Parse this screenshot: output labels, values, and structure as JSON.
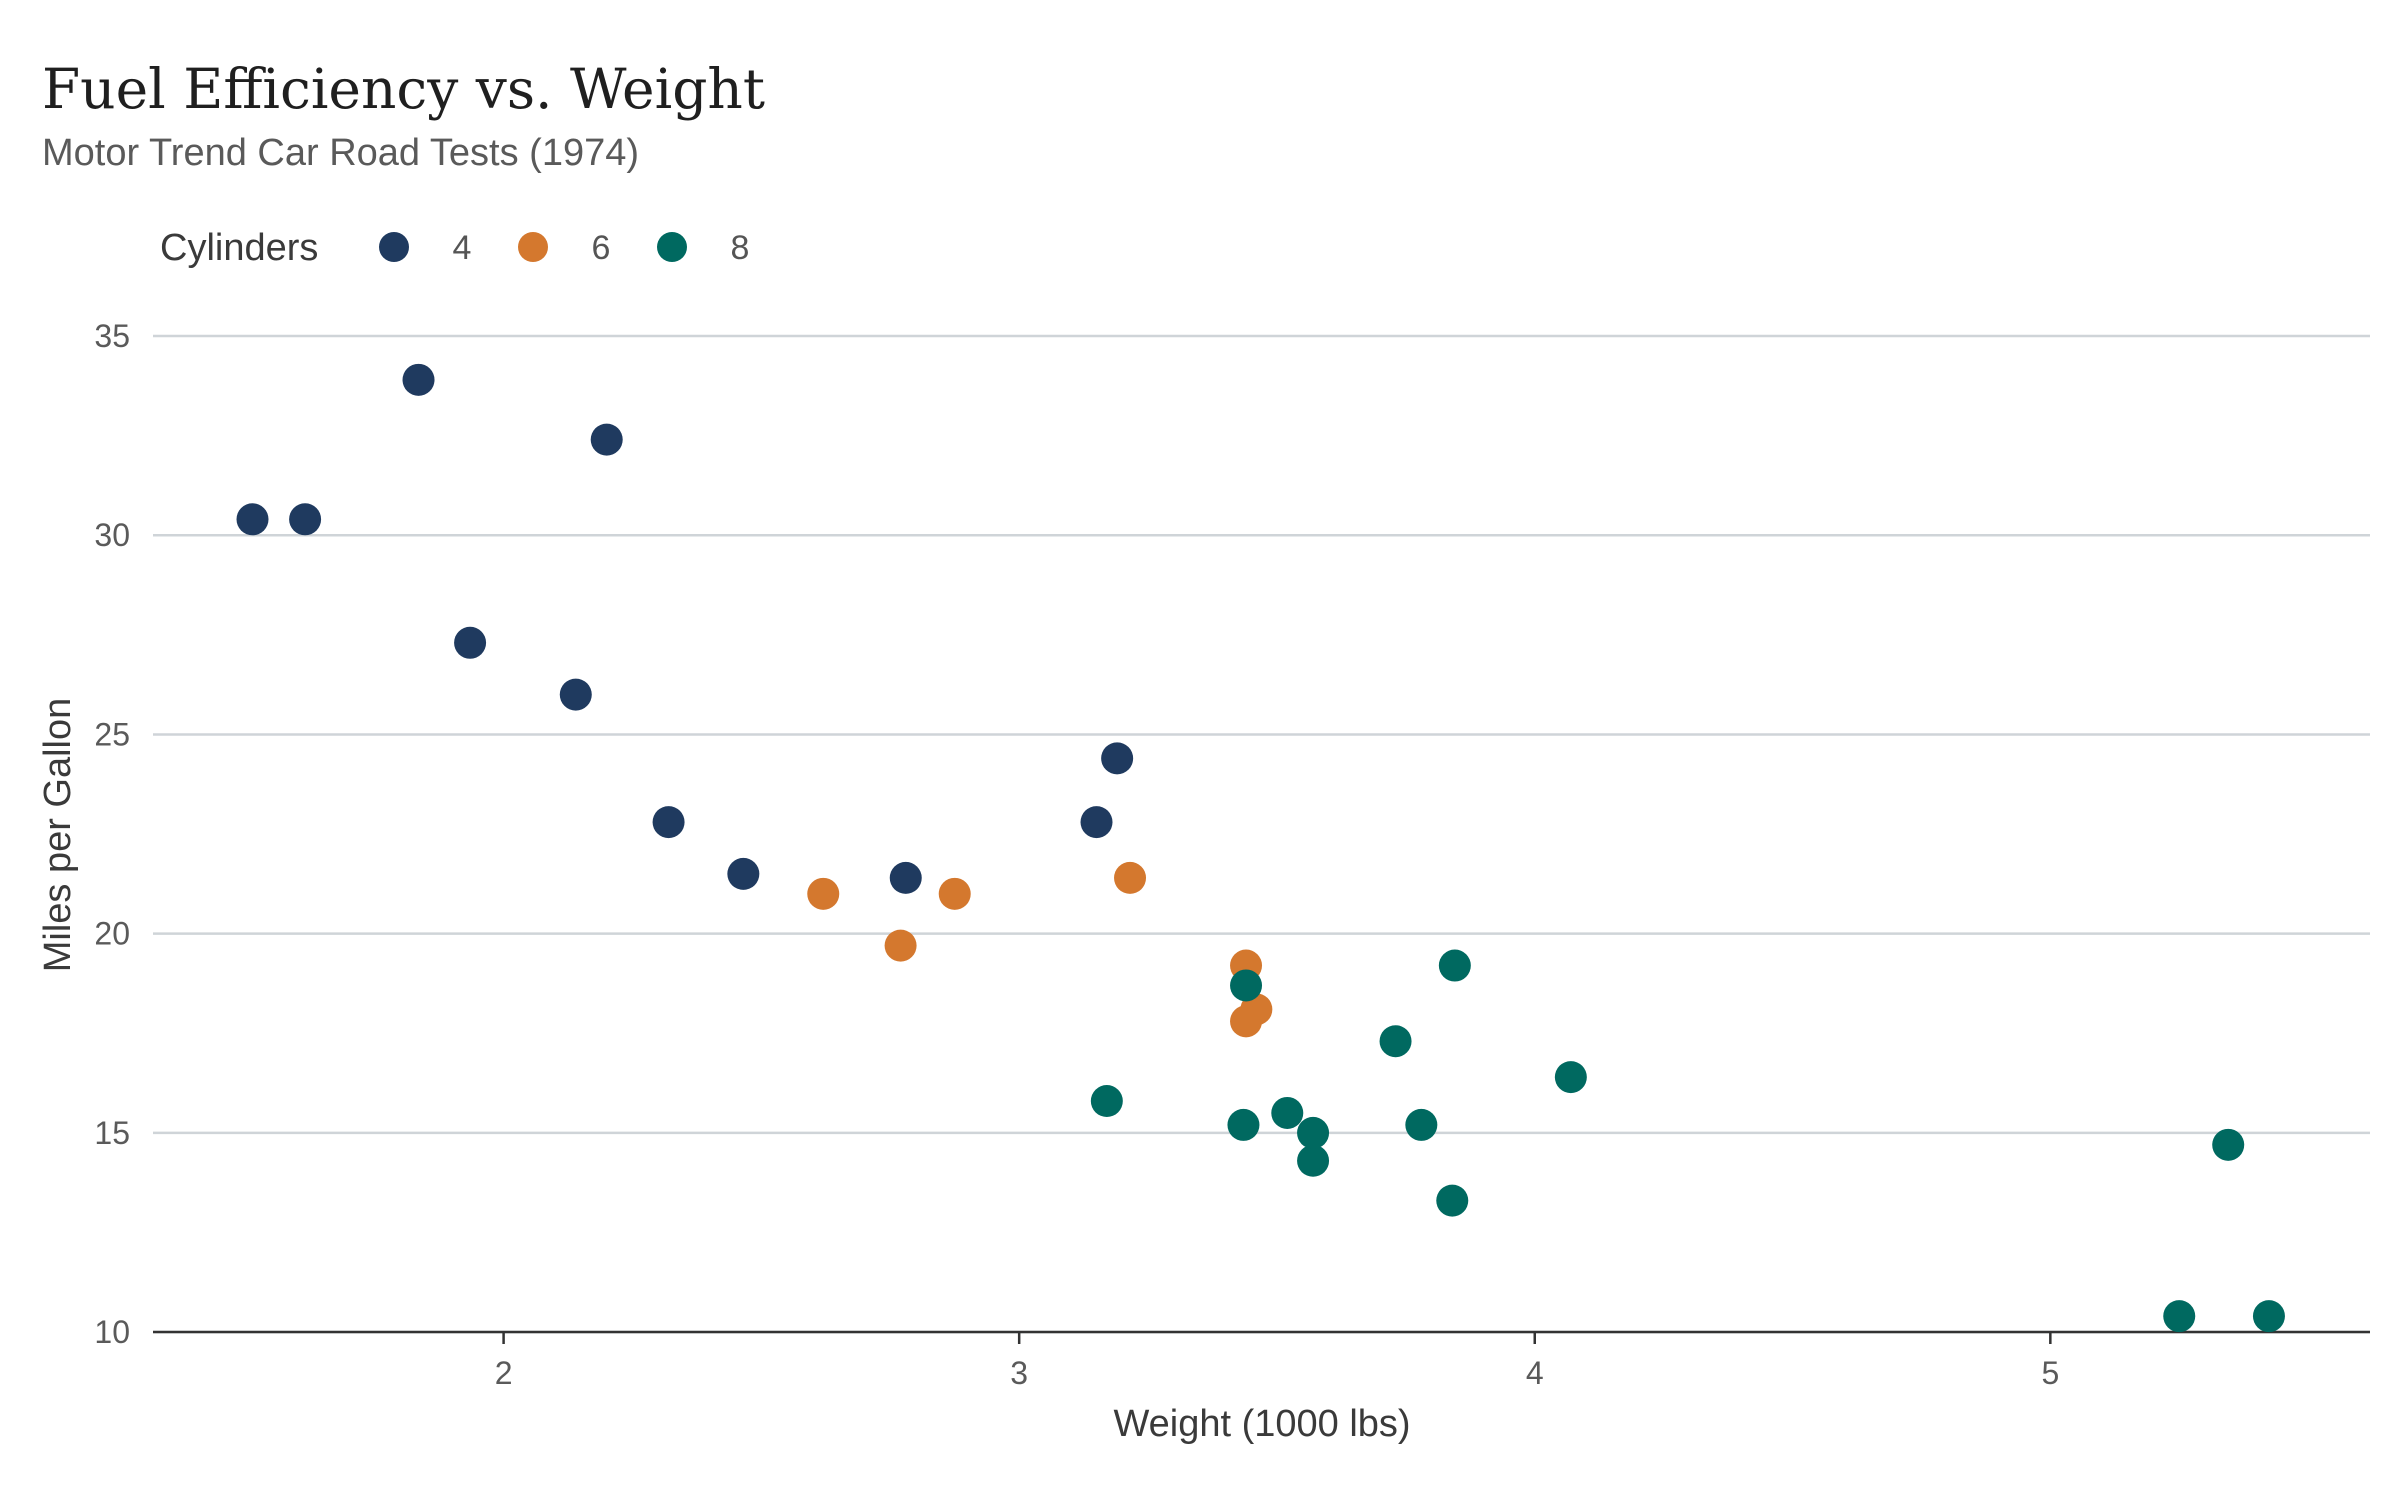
{
  "chart_data": {
    "type": "scatter",
    "title": "Fuel Efficiency vs. Weight",
    "subtitle": "Motor Trend Car Road Tests (1974)",
    "xlabel": "Weight (1000 lbs)",
    "ylabel": "Miles per Gallon",
    "xlim": [
      1.32,
      5.62
    ],
    "ylim": [
      9.3,
      35
    ],
    "x_ticks": [
      2,
      3,
      4,
      5
    ],
    "y_ticks": [
      10,
      15,
      20,
      25,
      30,
      35
    ],
    "grid": "horizontal",
    "legend": {
      "title": "Cylinders",
      "placement": "top-left"
    },
    "series": [
      {
        "name": "4",
        "color": "#1f3a5f",
        "points": [
          [
            2.32,
            22.8
          ],
          [
            3.19,
            24.4
          ],
          [
            3.15,
            22.8
          ],
          [
            2.2,
            32.4
          ],
          [
            1.615,
            30.4
          ],
          [
            1.835,
            33.9
          ],
          [
            2.465,
            21.5
          ],
          [
            1.935,
            27.3
          ],
          [
            2.14,
            26.0
          ],
          [
            1.513,
            30.4
          ],
          [
            2.78,
            21.4
          ]
        ]
      },
      {
        "name": "6",
        "color": "#d4782e",
        "points": [
          [
            2.62,
            21.0
          ],
          [
            2.875,
            21.0
          ],
          [
            3.215,
            21.4
          ],
          [
            3.46,
            18.1
          ],
          [
            3.44,
            19.2
          ],
          [
            3.44,
            17.8
          ],
          [
            2.77,
            19.7
          ]
        ]
      },
      {
        "name": "8",
        "color": "#006960",
        "points": [
          [
            3.44,
            18.7
          ],
          [
            3.57,
            14.3
          ],
          [
            4.07,
            16.4
          ],
          [
            3.73,
            17.3
          ],
          [
            3.78,
            15.2
          ],
          [
            5.25,
            10.4
          ],
          [
            5.424,
            10.4
          ],
          [
            5.345,
            14.7
          ],
          [
            3.52,
            15.5
          ],
          [
            3.435,
            15.2
          ],
          [
            3.84,
            13.3
          ],
          [
            3.845,
            19.2
          ],
          [
            3.17,
            15.8
          ],
          [
            3.57,
            15.0
          ]
        ]
      }
    ]
  }
}
